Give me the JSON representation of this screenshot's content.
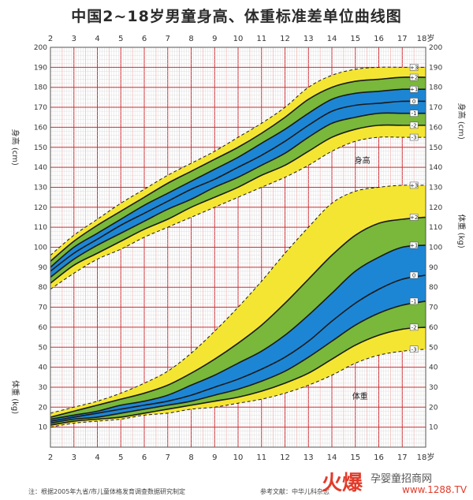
{
  "title": "中国2~18岁男童身高、体重标准差单位曲线图",
  "colors": {
    "yellow": "#f4e533",
    "green": "#79b83a",
    "blue": "#1d86d4",
    "grid": "#d7d7d7",
    "minor": "#f0b0b0",
    "major": "#cf2f35"
  },
  "chart_data": {
    "type": "line",
    "title": "中国2~18岁男童身高、体重标准差单位曲线图",
    "x_ticks": [
      "2",
      "3",
      "4",
      "5",
      "6",
      "7",
      "8",
      "9",
      "10",
      "11",
      "12",
      "13",
      "14",
      "15",
      "16",
      "17",
      "18岁"
    ],
    "y_ticks": [
      "10",
      "20",
      "30",
      "40",
      "50",
      "60",
      "70",
      "80",
      "90",
      "100",
      "110",
      "120",
      "130",
      "140",
      "150",
      "160",
      "170",
      "180",
      "190",
      "200"
    ],
    "height_axis_label": "身高 (cm)",
    "weight_axis_label": "体重 (kg)",
    "sd_labels": [
      "+3",
      "+2",
      "+1",
      "0",
      "-1",
      "-2",
      "-3"
    ],
    "x": [
      2,
      3,
      4,
      5,
      6,
      7,
      8,
      9,
      10,
      11,
      12,
      13,
      14,
      15,
      16,
      17,
      18
    ],
    "height": {
      "label": "身高",
      "series": [
        {
          "name": "+3",
          "values": [
            96,
            106,
            114,
            122,
            129,
            136,
            142,
            148,
            155,
            162,
            170,
            180,
            186,
            189,
            190,
            190,
            190
          ]
        },
        {
          "name": "+2",
          "values": [
            93,
            103,
            111,
            118,
            125,
            132,
            138,
            144,
            150,
            157,
            165,
            174,
            180,
            183,
            184,
            185,
            185
          ]
        },
        {
          "name": "+1",
          "values": [
            90,
            100,
            107,
            114,
            121,
            127,
            133,
            139,
            145,
            152,
            159,
            167,
            174,
            177,
            178,
            179,
            179
          ]
        },
        {
          "name": "0",
          "values": [
            88,
            97,
            104,
            111,
            117,
            123,
            129,
            134,
            140,
            146,
            153,
            161,
            168,
            171,
            172,
            173,
            173
          ]
        },
        {
          "name": "-1",
          "values": [
            85,
            94,
            101,
            107,
            113,
            119,
            124,
            130,
            135,
            141,
            147,
            155,
            162,
            165,
            167,
            167,
            167
          ]
        },
        {
          "name": "-2",
          "values": [
            82,
            91,
            97,
            103,
            109,
            114,
            120,
            125,
            130,
            136,
            141,
            148,
            155,
            159,
            161,
            161,
            161
          ]
        },
        {
          "name": "-3",
          "values": [
            79,
            87,
            94,
            99,
            105,
            110,
            115,
            120,
            125,
            130,
            135,
            141,
            148,
            153,
            155,
            155,
            155
          ]
        }
      ]
    },
    "weight": {
      "label": "体重",
      "series": [
        {
          "name": "+3",
          "values": [
            17,
            20,
            23,
            27,
            32,
            38,
            47,
            58,
            70,
            83,
            97,
            110,
            122,
            128,
            130,
            131,
            131
          ]
        },
        {
          "name": "+2",
          "values": [
            15,
            18,
            21,
            24,
            27,
            31,
            37,
            44,
            52,
            61,
            72,
            84,
            96,
            106,
            112,
            114,
            115
          ]
        },
        {
          "name": "+1",
          "values": [
            14,
            16,
            18,
            21,
            23,
            26,
            31,
            36,
            42,
            48,
            56,
            66,
            77,
            88,
            95,
            100,
            101
          ]
        },
        {
          "name": "0",
          "values": [
            13,
            15,
            17,
            19,
            21,
            23,
            26,
            30,
            34,
            39,
            45,
            53,
            63,
            72,
            79,
            84,
            86
          ]
        },
        {
          "name": "-1",
          "values": [
            12,
            14,
            15,
            17,
            19,
            21,
            23,
            26,
            29,
            33,
            38,
            45,
            53,
            61,
            67,
            71,
            73
          ]
        },
        {
          "name": "-2",
          "values": [
            11,
            13,
            14,
            15,
            17,
            19,
            21,
            23,
            25,
            28,
            32,
            37,
            44,
            51,
            56,
            59,
            60
          ]
        },
        {
          "name": "-3",
          "values": [
            10,
            12,
            13,
            14,
            16,
            17,
            19,
            20,
            22,
            24,
            27,
            31,
            36,
            42,
            46,
            48,
            49
          ]
        }
      ]
    },
    "xlim": [
      2,
      18
    ],
    "ylim": [
      0,
      200
    ],
    "grid": true
  },
  "footer": {
    "left": "注：根据2005年九省/市儿童体格发育调查数据研究制定",
    "right": "参考文献：中华儿科杂志"
  },
  "watermark": {
    "logo": "火爆",
    "text": "孕婴童招商网",
    "url": "www.1288.TV"
  }
}
